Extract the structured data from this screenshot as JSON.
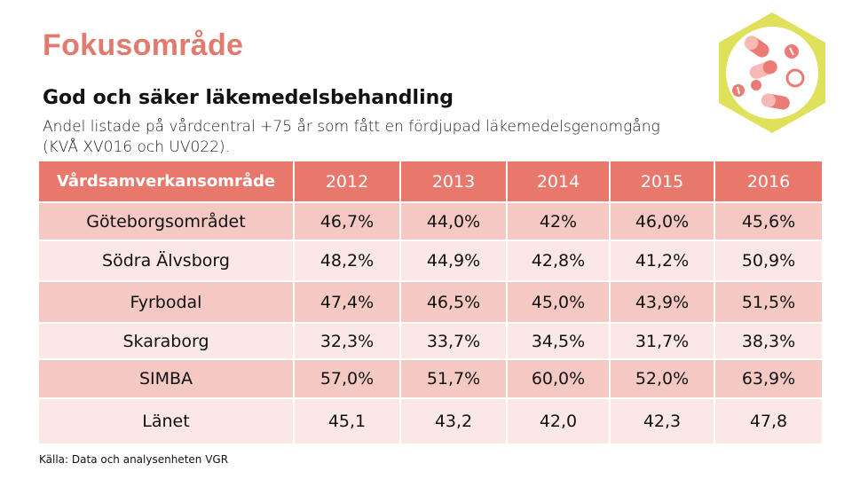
{
  "header": {
    "title": "Fokusområde",
    "subtitle": "God och säker läkemedelsbehandling",
    "description": "Andel listade på vårdcentral +75 år som fått en fördjupad läkemedelsgenomgång (KVÅ XV016 och UV022)."
  },
  "badge": {
    "icon": "pills-icon",
    "hex_color": "#dfe15a",
    "pill_color": "#ec7b75"
  },
  "table": {
    "columns": [
      "Vårdsamverkansområde",
      "2012",
      "2013",
      "2014",
      "2015",
      "2016"
    ],
    "rows": [
      [
        "Göteborgsområdet",
        "46,7%",
        "44,0%",
        "42%",
        "46,0%",
        "45,6%"
      ],
      [
        "Södra Älvsborg",
        "48,2%",
        "44,9%",
        "42,8%",
        "41,2%",
        "50,9%"
      ],
      [
        "Fyrbodal",
        "47,4%",
        "46,5%",
        "45,0%",
        "43,9%",
        "51,5%"
      ],
      [
        "Skaraborg",
        "32,3%",
        "33,7%",
        "34,5%",
        "31,7%",
        "38,3%"
      ],
      [
        "SIMBA",
        "57,0%",
        "51,7%",
        "60,0%",
        "52,0%",
        "63,9%"
      ],
      [
        "Länet",
        "45,1",
        "43,2",
        "42,0",
        "42,3",
        "47,8"
      ]
    ]
  },
  "footer": {
    "source": "Källa: Data och analysenheten VGR"
  },
  "colors": {
    "title": "#e07b6e",
    "header_bg": "#e8776c",
    "row_dark": "#f5c9c3",
    "row_light": "#fbe7e4"
  }
}
